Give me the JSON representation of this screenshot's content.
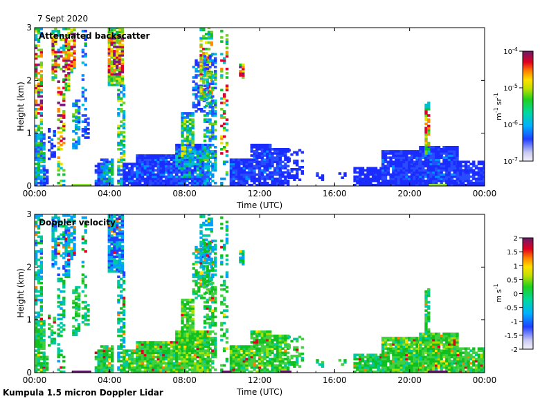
{
  "date": "7 Sept 2020",
  "footer": "Kumpula 1.5 micron Doppler Lidar",
  "chart_data": [
    {
      "type": "heatmap",
      "title": "Attenuated backscatter",
      "xlabel": "Time (UTC)",
      "ylabel": "Height (km)",
      "xlim": [
        0,
        24
      ],
      "ylim": [
        0,
        3
      ],
      "x_ticks": [
        "00:00",
        "04:00",
        "08:00",
        "12:00",
        "16:00",
        "20:00",
        "00:00"
      ],
      "y_ticks": [
        "0",
        "1",
        "2",
        "3"
      ],
      "colorbar": {
        "scale": "log",
        "range": [
          1e-07,
          0.0001
        ],
        "ticks": [
          {
            "base": "10",
            "exp": "-7",
            "value": -7
          },
          {
            "base": "10",
            "exp": "-6",
            "value": -6
          },
          {
            "base": "10",
            "exp": "-5",
            "value": -5
          },
          {
            "base": "10",
            "exp": "-4",
            "value": -4
          }
        ],
        "unit": {
          "m": "m",
          "m_exp": "-1",
          "sr": "sr",
          "sr_exp": "-1"
        }
      },
      "bottom_markers": [
        {
          "start": 2.0,
          "end": 3.0,
          "color": "#8ae234"
        },
        {
          "start": 21.0,
          "end": 22.0,
          "color": "#8ae234"
        }
      ]
    },
    {
      "type": "heatmap",
      "title": "Doppler velocity",
      "xlabel": "Time (UTC)",
      "ylabel": "Height (km)",
      "xlim": [
        0,
        24
      ],
      "ylim": [
        0,
        3
      ],
      "x_ticks": [
        "00:00",
        "04:00",
        "08:00",
        "12:00",
        "16:00",
        "20:00",
        "00:00"
      ],
      "y_ticks": [
        "0",
        "1",
        "2",
        "3"
      ],
      "colorbar": {
        "scale": "linear",
        "range": [
          -2,
          2
        ],
        "ticks": [
          "2",
          "1.5",
          "1",
          "0.5",
          "0",
          "-0.5",
          "-1",
          "-1.5",
          "-2"
        ],
        "unit": {
          "m": "m",
          "s": "s",
          "s_exp": "-1"
        }
      },
      "bottom_markers": [
        {
          "start": 2.0,
          "end": 3.0,
          "color": "#5c1466"
        },
        {
          "start": 10.0,
          "end": 10.5,
          "color": "#5c1466"
        },
        {
          "start": 13.1,
          "end": 13.7,
          "color": "#5c1466"
        },
        {
          "start": 21.0,
          "end": 22.0,
          "color": "#5c1466"
        }
      ]
    }
  ]
}
